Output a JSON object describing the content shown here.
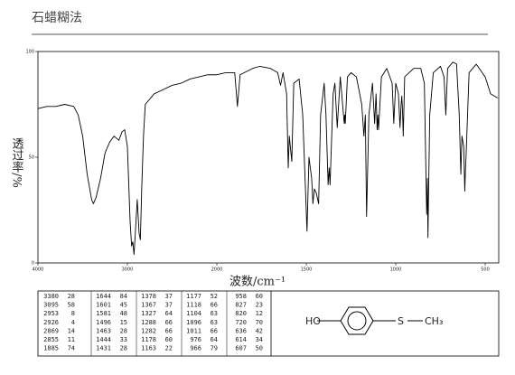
{
  "chart_data": {
    "type": "line",
    "title": "石蜡糊法",
    "x_label": "波数/cm⁻¹",
    "y_label": "透过率/%",
    "color": "#000000",
    "xlim": [
      4000,
      430
    ],
    "xticks": [
      4000,
      3000,
      2000,
      1500,
      1000,
      500
    ],
    "ylim": [
      0,
      100
    ],
    "yticks": [
      0,
      50,
      100
    ],
    "x": [
      4000,
      3900,
      3800,
      3700,
      3600,
      3550,
      3500,
      3450,
      3400,
      3380,
      3350,
      3300,
      3250,
      3200,
      3150,
      3095,
      3060,
      3030,
      3000,
      2970,
      2953,
      2940,
      2926,
      2910,
      2890,
      2869,
      2855,
      2840,
      2820,
      2800,
      2700,
      2600,
      2500,
      2400,
      2300,
      2200,
      2100,
      2000,
      1950,
      1900,
      1885,
      1870,
      1800,
      1760,
      1700,
      1660,
      1644,
      1630,
      1610,
      1601,
      1595,
      1581,
      1570,
      1540,
      1520,
      1496,
      1485,
      1470,
      1463,
      1455,
      1444,
      1431,
      1420,
      1400,
      1390,
      1378,
      1372,
      1367,
      1350,
      1340,
      1327,
      1310,
      1288,
      1285,
      1282,
      1270,
      1250,
      1220,
      1190,
      1178,
      1170,
      1163,
      1150,
      1130,
      1118,
      1110,
      1104,
      1100,
      1096,
      1080,
      1050,
      1020,
      1011,
      1000,
      985,
      976,
      970,
      966,
      962,
      958,
      950,
      900,
      860,
      840,
      827,
      823,
      820,
      810,
      790,
      750,
      730,
      720,
      710,
      680,
      660,
      645,
      636,
      630,
      620,
      614,
      610,
      607,
      590,
      550,
      500,
      470,
      430
    ],
    "values": [
      73,
      74,
      74,
      75,
      74,
      70,
      60,
      42,
      30,
      28,
      31,
      40,
      52,
      57,
      60,
      58,
      62,
      63,
      55,
      20,
      8,
      10,
      4,
      15,
      30,
      14,
      11,
      35,
      60,
      75,
      80,
      82,
      84,
      85,
      87,
      88,
      89,
      89,
      90,
      90,
      74,
      89,
      92,
      93,
      92,
      90,
      84,
      90,
      80,
      45,
      60,
      48,
      85,
      87,
      70,
      15,
      50,
      40,
      28,
      35,
      33,
      28,
      70,
      85,
      70,
      37,
      45,
      37,
      80,
      85,
      64,
      88,
      66,
      70,
      66,
      88,
      90,
      88,
      75,
      60,
      70,
      22,
      70,
      85,
      66,
      80,
      63,
      70,
      63,
      88,
      92,
      85,
      66,
      85,
      80,
      64,
      75,
      79,
      72,
      60,
      88,
      92,
      92,
      85,
      23,
      40,
      12,
      70,
      90,
      93,
      88,
      70,
      92,
      95,
      94,
      70,
      42,
      60,
      55,
      34,
      45,
      50,
      90,
      94,
      88,
      80,
      78
    ]
  },
  "peak_table": {
    "columns": [
      [
        [
          3380,
          28
        ],
        [
          3095,
          58
        ],
        [
          2953,
          8
        ],
        [
          2926,
          4
        ],
        [
          2869,
          14
        ],
        [
          2855,
          11
        ],
        [
          1885,
          74
        ]
      ],
      [
        [
          1644,
          84
        ],
        [
          1601,
          45
        ],
        [
          1581,
          48
        ],
        [
          1496,
          15
        ],
        [
          1463,
          28
        ],
        [
          1444,
          33
        ],
        [
          1431,
          28
        ]
      ],
      [
        [
          1378,
          37
        ],
        [
          1367,
          37
        ],
        [
          1327,
          64
        ],
        [
          1288,
          66
        ],
        [
          1282,
          66
        ],
        [
          1178,
          60
        ],
        [
          1163,
          22
        ]
      ],
      [
        [
          1177,
          52
        ],
        [
          1118,
          66
        ],
        [
          1104,
          63
        ],
        [
          1096,
          63
        ],
        [
          1011,
          66
        ],
        [
          976,
          64
        ],
        [
          966,
          79
        ]
      ],
      [
        [
          958,
          60
        ],
        [
          827,
          23
        ],
        [
          820,
          12
        ],
        [
          720,
          70
        ],
        [
          636,
          42
        ],
        [
          614,
          34
        ],
        [
          607,
          50
        ]
      ]
    ]
  },
  "structure": {
    "left": "HO",
    "middle": "S",
    "right": "CH₃"
  }
}
